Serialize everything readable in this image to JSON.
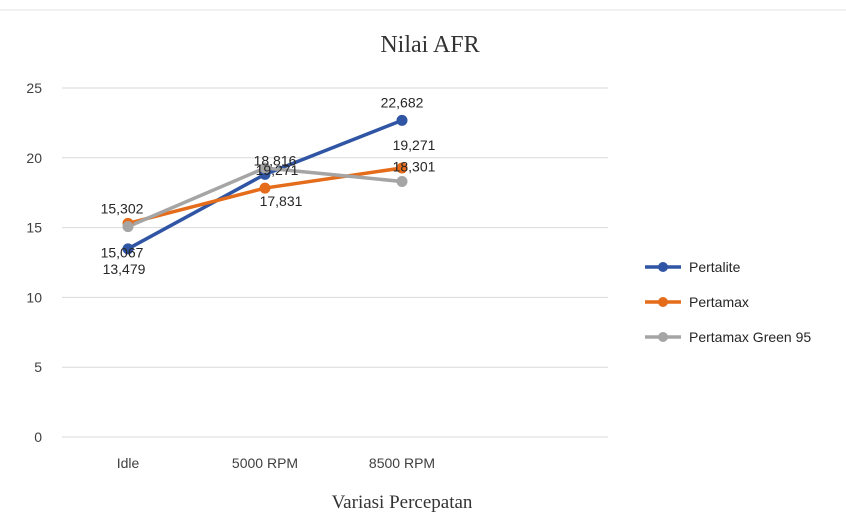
{
  "chart_data": {
    "type": "line",
    "title": "Nilai AFR",
    "xlabel": "Variasi Percepatan",
    "ylabel": "",
    "categories": [
      "Idle",
      "5000 RPM",
      "8500 RPM"
    ],
    "ylim": [
      0,
      25
    ],
    "yticks": [
      0,
      5,
      10,
      15,
      20,
      25
    ],
    "grid": true,
    "legend_position": "right",
    "series": [
      {
        "name": "Pertalite",
        "color": "#2f55a4",
        "values": [
          13.479,
          18.816,
          22.682
        ],
        "labels": [
          "13,479",
          "18,816",
          "22,682"
        ]
      },
      {
        "name": "Pertamax",
        "color": "#e46c1a",
        "values": [
          15.302,
          17.831,
          19.271
        ],
        "labels": [
          "15,302",
          "17,831",
          "19,271"
        ]
      },
      {
        "name": "Pertamax Green 95",
        "color": "#a5a5a5",
        "values": [
          15.067,
          19.271,
          18.301
        ],
        "labels": [
          "15,067",
          "19,271",
          "18,301"
        ]
      }
    ]
  }
}
